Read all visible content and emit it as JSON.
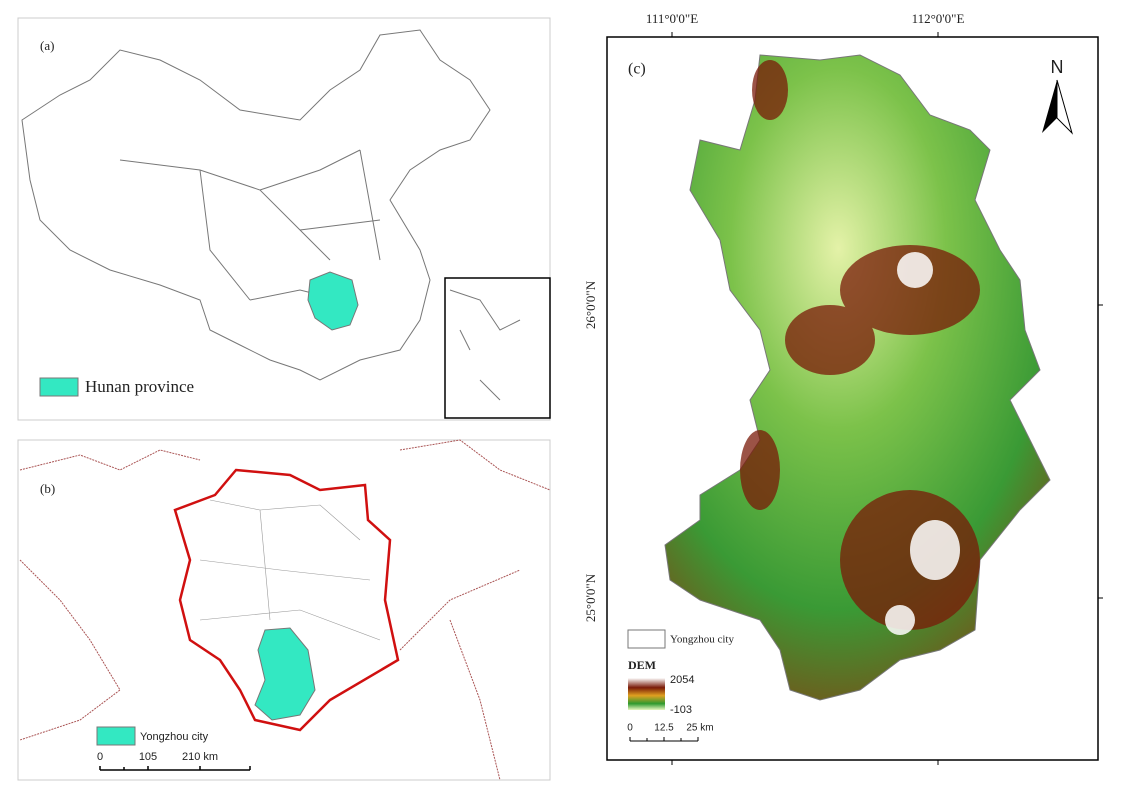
{
  "panel_a": {
    "label": "(a)",
    "legend": "Hunan province"
  },
  "panel_b": {
    "label": "(b)",
    "legend": "Yongzhou city",
    "scale": [
      "0",
      "105",
      "210 km"
    ]
  },
  "panel_c": {
    "label": "(c)",
    "north": "N",
    "x_labels": [
      "111°0'0\"E",
      "112°0'0\"E"
    ],
    "y_labels": [
      "26°0'0\"N",
      "25°0'0\"N"
    ],
    "legend_boundary": "Yongzhou city",
    "legend_title": "DEM",
    "dem_max": "2054",
    "dem_min": "-103",
    "scale": [
      "0",
      "12.5",
      "25 km"
    ]
  }
}
